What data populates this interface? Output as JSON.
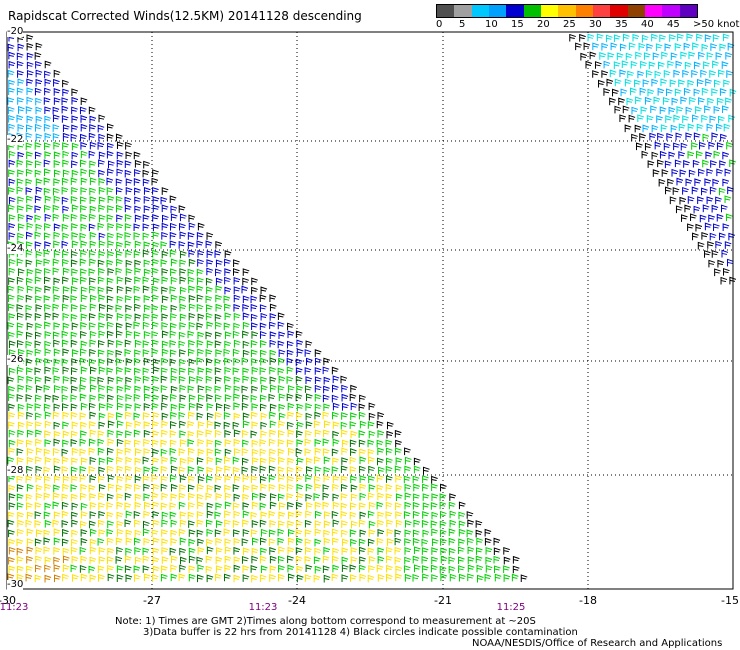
{
  "title": "Rapidscat Corrected Winds(12.5KM) 20141128 descending",
  "colorbar": {
    "colors": [
      "#505050",
      "#a0a0a0",
      "#00c8ff",
      "#00a0ff",
      "#0000d0",
      "#00c000",
      "#ffff00",
      "#ffc000",
      "#ff8000",
      "#ff4040",
      "#e00000",
      "#904000",
      "#ff00ff",
      "#c000ff",
      "#6000c0"
    ],
    "ticks": [
      "0",
      "5",
      "10",
      "15",
      "20",
      "25",
      "30",
      "35",
      "40",
      "45",
      ">50 knots"
    ]
  },
  "map": {
    "lon_range": [
      -30,
      -15
    ],
    "lat_range": [
      -30,
      -20
    ],
    "x_labels": [
      "-30",
      "-27",
      "-24",
      "-21",
      "-18",
      "-15"
    ],
    "y_labels": [
      "-20",
      "-22",
      "-24",
      "-26",
      "-28",
      "-30"
    ],
    "time_labels": [
      "11:23",
      "11:23",
      "11:25"
    ],
    "speed_colors": {
      "yellow": "#ffe000",
      "orange": "#d08000",
      "green": "#00d000",
      "dark_green": "#007000",
      "blue": "#0000d0",
      "light_blue": "#00b0ff",
      "cyan": "#00e0e0",
      "black": "#000000"
    }
  },
  "notes": {
    "line1": "Note: 1) Times are GMT 2)Times along bottom correspond to measurement at ~20S",
    "line2": "3)Data buffer is 22 hrs from 20141128 4) Black circles indicate possible contamination",
    "line3": "NOAA/NESDIS/Office of Research and Applications"
  }
}
